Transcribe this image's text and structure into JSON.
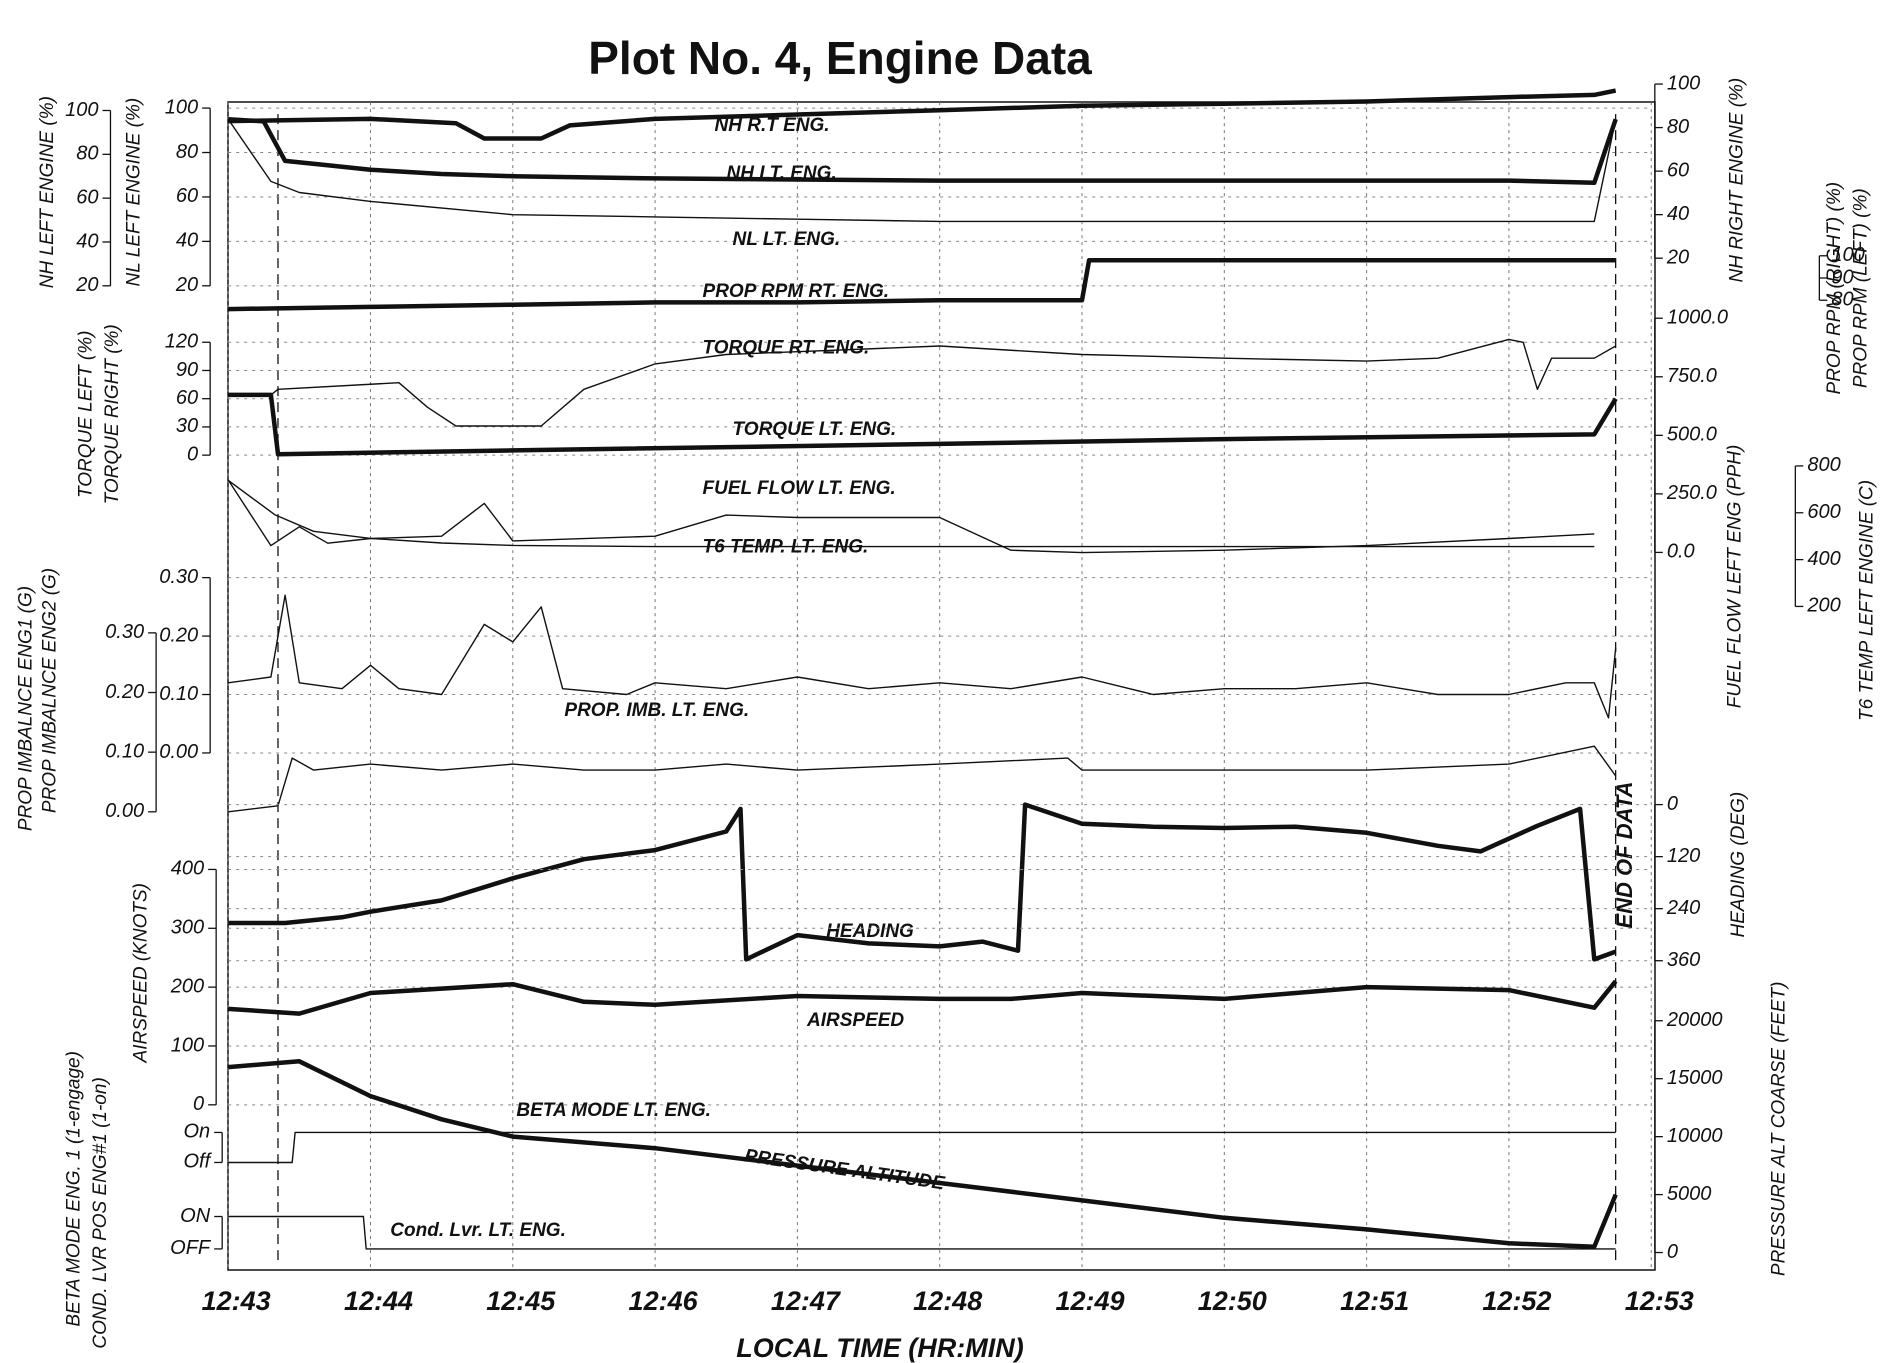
{
  "title": "Plot No. 4, Engine Data",
  "annotation": "END OF DATA",
  "x_axis": {
    "label": "LOCAL TIME (HR:MIN)",
    "xlim": [
      43,
      53
    ],
    "xticks": [
      {
        "value": 43,
        "label": "12:43"
      },
      {
        "value": 44,
        "label": "12:44"
      },
      {
        "value": 45,
        "label": "12:45"
      },
      {
        "value": 46,
        "label": "12:46"
      },
      {
        "value": 47,
        "label": "12:47"
      },
      {
        "value": 48,
        "label": "12:48"
      },
      {
        "value": 49,
        "label": "12:49"
      },
      {
        "value": 50,
        "label": "12:50"
      },
      {
        "value": 51,
        "label": "12:51"
      },
      {
        "value": 52,
        "label": "12:52"
      },
      {
        "value": 53,
        "label": "12:53"
      }
    ],
    "markers": [
      43.35,
      52.75
    ],
    "grid": true
  },
  "chart_data": [
    {
      "type": "line",
      "axes": [
        {
          "labels": [
            "NH LEFT ENGINE (%)"
          ],
          "ylim": [
            20,
            100
          ],
          "yticks": [
            20,
            40,
            60,
            80,
            100
          ]
        },
        {
          "labels": [
            "NL LEFT ENGINE (%)"
          ],
          "ylim": [
            20,
            100
          ],
          "yticks": [
            20,
            40,
            60,
            80,
            100
          ],
          "grid": true
        },
        {
          "labels": [
            "NH RIGHT ENGINE (%)"
          ],
          "ylim": [
            20,
            100
          ],
          "yticks": [
            20,
            40,
            60,
            80,
            100
          ]
        }
      ],
      "series": [
        {
          "name": "NH R.T ENG.",
          "axis": 2,
          "style": "thick",
          "color": "#111",
          "x": [
            43,
            44,
            44.6,
            44.8,
            45.2,
            45.4,
            46,
            47,
            48,
            49,
            50,
            51,
            52,
            52.6,
            52.75
          ],
          "values": [
            83,
            84,
            82,
            75,
            75,
            81,
            84,
            86,
            88,
            90,
            91,
            92,
            94,
            95,
            97
          ]
        },
        {
          "name": "NH LT. ENG.",
          "axis": 0,
          "style": "thick",
          "color": "#111",
          "x": [
            43,
            43.25,
            43.4,
            43.7,
            44,
            44.5,
            45,
            46,
            47,
            48,
            49,
            50,
            51,
            52,
            52.6,
            52.75
          ],
          "values": [
            96,
            95,
            77,
            75,
            73,
            71,
            70,
            69,
            68.5,
            68,
            68,
            68,
            68,
            68,
            67,
            96
          ]
        },
        {
          "name": "NL LT. ENG.",
          "axis": 1,
          "style": "thin",
          "color": "#111",
          "x": [
            43,
            43.3,
            43.5,
            44,
            45,
            46,
            47,
            48,
            50,
            52.6,
            52.75
          ],
          "values": [
            95,
            67,
            62,
            58,
            52,
            51,
            50,
            49,
            49,
            49,
            95
          ]
        }
      ]
    },
    {
      "type": "line",
      "axes": [
        {
          "labels": [
            "PROP RPM (RIGHT) (%)",
            "PROP RPM (LEFT) (%)"
          ],
          "ylim": [
            80,
            100
          ],
          "yticks": [
            80,
            90,
            100
          ]
        }
      ],
      "series": [
        {
          "name": "PROP RPM RT. ENG.",
          "axis": 0,
          "style": "thick",
          "color": "#111",
          "x": [
            43,
            44,
            45,
            46,
            47,
            48,
            49,
            49.05,
            50,
            51,
            52,
            52.75
          ],
          "values": [
            76,
            77,
            78,
            79,
            79,
            80,
            80,
            98,
            98,
            98,
            98,
            98
          ]
        }
      ]
    },
    {
      "type": "line",
      "axes": [
        {
          "labels": [
            "TORQUE LEFT (%)",
            "TORQUE RIGHT (%)"
          ],
          "ylim": [
            0,
            120
          ],
          "yticks": [
            0,
            30,
            60,
            90,
            120
          ],
          "grid": true
        },
        {
          "labels": [
            "FUEL FLOW LEFT ENG (PPH)"
          ],
          "ylim": [
            0,
            1000
          ],
          "yticks": [
            {
              "value": 0,
              "label": "0.0"
            },
            {
              "value": 250,
              "label": "250.0"
            },
            {
              "value": 500,
              "label": "500.0"
            },
            {
              "value": 750,
              "label": "750.0"
            },
            {
              "value": 1000,
              "label": "1000.0"
            }
          ]
        },
        {
          "labels": [
            "T6 TEMP LEFT ENGINE (C)"
          ],
          "ylim": [
            200,
            800
          ],
          "yticks": [
            200,
            400,
            600,
            800
          ]
        }
      ],
      "series": [
        {
          "name": "TORQUE RT. ENG.",
          "axis": 0,
          "style": "thin",
          "color": "#111",
          "x": [
            43,
            43.3,
            43.35,
            44.2,
            44.4,
            44.6,
            45.2,
            45.5,
            46,
            46.5,
            47,
            48,
            49,
            50,
            51,
            51.5,
            52,
            52.1,
            52.2,
            52.3,
            52.6,
            52.75
          ],
          "values": [
            64,
            64,
            70,
            77,
            51,
            31,
            31,
            70,
            97,
            107,
            110,
            116,
            107,
            103,
            100,
            103,
            123,
            120,
            70,
            103,
            103,
            116
          ]
        },
        {
          "name": "TORQUE LT. ENG.",
          "axis": 0,
          "style": "thick",
          "color": "#111",
          "x": [
            43,
            43.3,
            43.35,
            45,
            48,
            50,
            52.6,
            52.75
          ],
          "values": [
            64,
            64,
            1,
            5,
            12,
            17,
            22,
            60
          ]
        },
        {
          "name": "FUEL FLOW LT. ENG.",
          "axis": 1,
          "style": "thin",
          "color": "#111",
          "x": [
            43,
            43.33,
            43.6,
            44,
            44.5,
            45,
            46,
            48,
            50,
            52.6
          ],
          "values": [
            308,
            160,
            90,
            60,
            40,
            30,
            25,
            25,
            25,
            25
          ]
        },
        {
          "name": "T6 TEMP. LT. ENG.",
          "axis": 2,
          "style": "thin",
          "color": "#111",
          "x": [
            43,
            43.3,
            43.5,
            43.7,
            44,
            44.5,
            44.8,
            45,
            46,
            46.5,
            47,
            48,
            48.5,
            49,
            50,
            51,
            52,
            52.6
          ],
          "values": [
            740,
            460,
            540,
            470,
            490,
            500,
            640,
            480,
            500,
            590,
            580,
            580,
            440,
            430,
            440,
            460,
            490,
            510
          ]
        }
      ]
    },
    {
      "type": "line",
      "axes": [
        {
          "labels": [
            "PROP IMBALNCE ENG1 (G)"
          ],
          "ylim": [
            0,
            0.3
          ],
          "yticks": [
            {
              "value": 0,
              "label": "0.00"
            },
            {
              "value": 0.1,
              "label": "0.10"
            },
            {
              "value": 0.2,
              "label": "0.20"
            },
            {
              "value": 0.3,
              "label": "0.30"
            }
          ]
        },
        {
          "labels": [
            "PROP IMBALNCE ENG2 (G)"
          ],
          "ylim": [
            0,
            0.3
          ],
          "yticks": [
            {
              "value": 0,
              "label": "0.00"
            },
            {
              "value": 0.1,
              "label": "0.10"
            },
            {
              "value": 0.2,
              "label": "0.20"
            },
            {
              "value": 0.3,
              "label": "0.30"
            }
          ],
          "grid": true
        }
      ],
      "series": [
        {
          "axis": 1,
          "style": "thin",
          "color": "#111",
          "x": [
            43,
            43.3,
            43.4,
            43.5,
            43.8,
            44,
            44.2,
            44.5,
            44.8,
            45,
            45.2,
            45.35,
            45.8,
            46,
            46.5,
            47,
            47.5,
            48,
            48.5,
            49,
            49.5,
            50,
            50.5,
            51,
            51.5,
            52,
            52.4,
            52.6,
            52.7,
            52.75
          ],
          "values": [
            0.12,
            0.13,
            0.27,
            0.12,
            0.11,
            0.15,
            0.11,
            0.1,
            0.22,
            0.19,
            0.25,
            0.11,
            0.1,
            0.12,
            0.11,
            0.13,
            0.11,
            0.12,
            0.11,
            0.13,
            0.1,
            0.11,
            0.11,
            0.12,
            0.1,
            0.1,
            0.12,
            0.12,
            0.06,
            0.18
          ]
        },
        {
          "name": "PROP. IMB. LT. ENG.",
          "axis": 0,
          "style": "thin",
          "color": "#111",
          "x": [
            43,
            43.35,
            43.45,
            43.6,
            44,
            44.5,
            45,
            45.5,
            46,
            46.5,
            47,
            48,
            48.9,
            49,
            50,
            51,
            52,
            52.6,
            52.75
          ],
          "values": [
            0.0,
            0.01,
            0.09,
            0.07,
            0.08,
            0.07,
            0.08,
            0.07,
            0.07,
            0.08,
            0.07,
            0.08,
            0.09,
            0.07,
            0.07,
            0.07,
            0.08,
            0.11,
            0.06
          ]
        }
      ]
    },
    {
      "type": "line",
      "axes": [
        {
          "labels": [
            "HEADING (DEG)"
          ],
          "ylim": [
            0,
            360
          ],
          "yticks": [
            0,
            120,
            240,
            360
          ],
          "grid": true
        }
      ],
      "series": [
        {
          "name": "HEADING",
          "axis": 0,
          "style": "thick",
          "color": "#111",
          "x": [
            43,
            43.4,
            43.8,
            44,
            44.5,
            45,
            45.5,
            46,
            46.5,
            46.6,
            46.64,
            47,
            47.5,
            48,
            48.3,
            48.55,
            48.6,
            49,
            49.5,
            50,
            50.5,
            51,
            51.5,
            51.8,
            52.2,
            52.5,
            52.6,
            52.75
          ],
          "values": [
            273,
            273,
            260,
            247,
            221,
            170,
            126,
            105,
            62,
            10,
            357,
            301,
            320,
            327,
            316,
            337,
            0,
            44,
            51,
            54,
            51,
            65,
            95,
            108,
            49,
            10,
            357,
            339
          ]
        }
      ]
    },
    {
      "type": "line",
      "axes": [
        {
          "labels": [
            "AIRSPEED (KNOTS)"
          ],
          "ylim": [
            0,
            400
          ],
          "yticks": [
            0,
            100,
            200,
            300,
            400
          ],
          "grid": true
        },
        {
          "labels": [
            "PRESSURE ALT COARSE (FEET)"
          ],
          "ylim": [
            0,
            20000
          ],
          "yticks": [
            0,
            5000,
            10000,
            15000,
            20000
          ]
        }
      ],
      "series": [
        {
          "name": "AIRSPEED",
          "axis": 0,
          "style": "thick",
          "color": "#111",
          "x": [
            43,
            43.5,
            44,
            45,
            45.5,
            46,
            47,
            48,
            48.5,
            49,
            50,
            51,
            52,
            52.6,
            52.75
          ],
          "values": [
            163,
            155,
            190,
            205,
            175,
            170,
            185,
            180,
            180,
            190,
            180,
            200,
            195,
            165,
            210
          ]
        },
        {
          "name": "PRESSURE ALTITUDE",
          "axis": 1,
          "style": "thick",
          "color": "#111",
          "x": [
            43,
            43.5,
            44,
            44.5,
            45,
            46,
            47,
            48,
            49,
            50,
            51,
            52,
            52.6,
            52.75
          ],
          "values": [
            16000,
            16500,
            13500,
            11500,
            10000,
            9000,
            7500,
            6000,
            4500,
            3000,
            2000,
            800,
            500,
            5000
          ]
        }
      ]
    },
    {
      "type": "line",
      "axes": [
        {
          "labels": [
            "BETA MODE ENG. 1 (1-engage)"
          ],
          "ylim": [
            0,
            1
          ],
          "yticks": [
            {
              "value": 0,
              "label": "Off"
            },
            {
              "value": 1,
              "label": "On"
            }
          ]
        },
        {
          "labels": [
            "COND. LVR POS ENG#1 (1-on)"
          ],
          "ylim": [
            0,
            1
          ],
          "yticks": [
            {
              "value": 0,
              "label": "OFF"
            },
            {
              "value": 1,
              "label": "ON"
            }
          ]
        }
      ],
      "series": [
        {
          "name": "BETA MODE LT. ENG.",
          "axis": 0,
          "style": "thin",
          "color": "#111",
          "x": [
            43,
            43.45,
            43.47,
            52.75
          ],
          "values": [
            0,
            0,
            1,
            1
          ]
        },
        {
          "name": "Cond. Lvr. LT. ENG.",
          "axis": 1,
          "style": "thin",
          "color": "#111",
          "x": [
            43,
            43.95,
            43.97,
            52.75
          ],
          "values": [
            1,
            1,
            0,
            0
          ]
        }
      ]
    }
  ]
}
